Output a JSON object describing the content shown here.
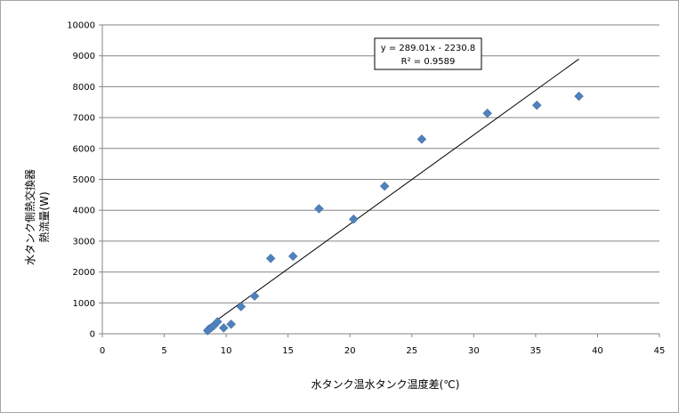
{
  "chart_data": {
    "type": "scatter",
    "title": "",
    "xlabel": "水タンク温水タンク温度差(℃)",
    "ylabel": [
      "水タンク側熱交換器",
      "熱流量(W)"
    ],
    "xlim": [
      0,
      45
    ],
    "ylim": [
      0,
      10000
    ],
    "x_ticks": [
      0,
      5,
      10,
      15,
      20,
      25,
      30,
      35,
      40,
      45
    ],
    "y_ticks": [
      0,
      1000,
      2000,
      3000,
      4000,
      5000,
      6000,
      7000,
      8000,
      9000,
      10000
    ],
    "grid": {
      "horizontal": true,
      "vertical": false
    },
    "legend": "none",
    "marker": {
      "shape": "diamond",
      "color": "#4f81bd"
    },
    "points": [
      [
        8.5,
        100
      ],
      [
        8.6,
        150
      ],
      [
        8.8,
        200
      ],
      [
        9.0,
        260
      ],
      [
        9.3,
        390
      ],
      [
        9.8,
        190
      ],
      [
        10.4,
        310
      ],
      [
        11.2,
        880
      ],
      [
        12.3,
        1220
      ],
      [
        13.6,
        2440
      ],
      [
        15.4,
        2510
      ],
      [
        17.5,
        4050
      ],
      [
        20.3,
        3710
      ],
      [
        22.8,
        4780
      ],
      [
        25.8,
        6300
      ],
      [
        31.1,
        7140
      ],
      [
        35.1,
        7400
      ],
      [
        38.5,
        7690
      ]
    ],
    "trendline": {
      "slope": 289.01,
      "intercept": -2230.8,
      "x_range": [
        8.5,
        38.5
      ],
      "color": "#000000",
      "equation": "y = 289.01x - 2230.8",
      "r_squared": "R² = 0.9589"
    }
  }
}
